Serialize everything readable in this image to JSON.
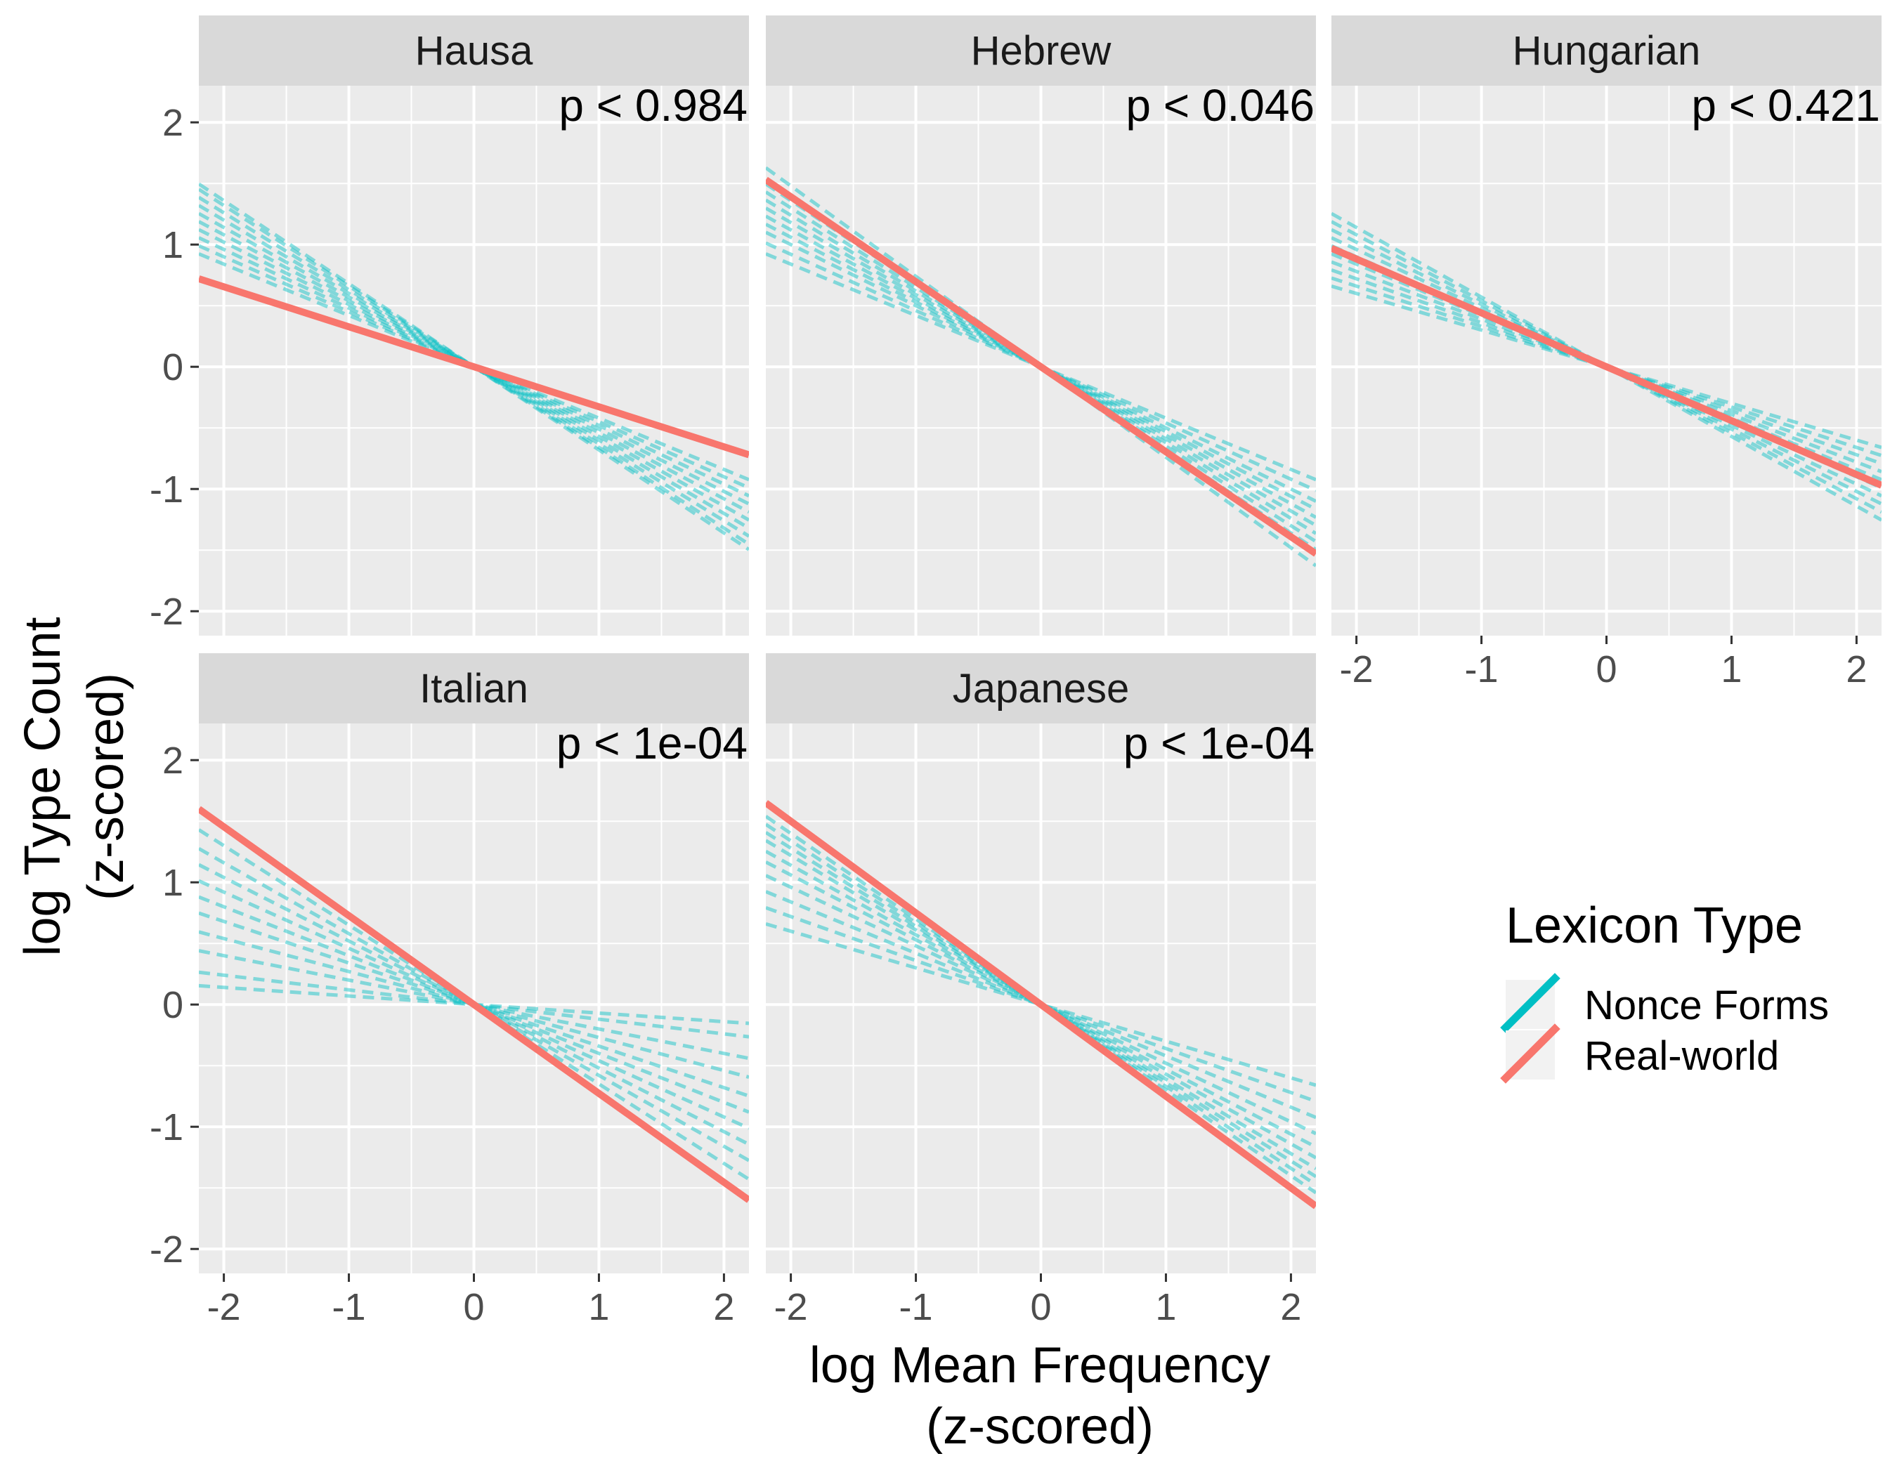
{
  "chart_data": {
    "type": "line",
    "layout": "faceted small multiples, 3 columns x 2 rows",
    "xlabel": [
      "log Mean Frequency",
      "(z-scored)"
    ],
    "ylabel": [
      "log Type Count",
      "(z-scored)"
    ],
    "xlim": [
      -2.2,
      2.2
    ],
    "ylim": [
      -2.2,
      2.3
    ],
    "x_ticks": [
      -2,
      -1,
      0,
      1,
      2
    ],
    "x_tick_labels": [
      "-2",
      "-1",
      "0",
      "1",
      "2"
    ],
    "y_ticks": [
      -2,
      -1,
      0,
      1,
      2
    ],
    "y_tick_labels": [
      "-2",
      "-1",
      "0",
      "1",
      "2"
    ],
    "grid": true,
    "legend": {
      "title": "Lexicon Type",
      "position": "right",
      "entries": [
        {
          "label": "Nonce Forms",
          "color": "#00BFC4",
          "style": "dashed"
        },
        {
          "label": "Real-world",
          "color": "#F8766D",
          "style": "solid"
        }
      ]
    },
    "colors": {
      "panel_background": "#EBEBEB",
      "strip_background": "#D9D9D9",
      "grid": "#FFFFFF",
      "nonce": "#00BFC4",
      "real": "#F8766D"
    },
    "facets": [
      {
        "name": "Hausa",
        "p_label": "p < 0.984",
        "real_world": {
          "x": [
            -2.2,
            2.2
          ],
          "y": [
            0.72,
            -0.72
          ]
        },
        "nonce_forms": {
          "x": [
            -2.2,
            2.2
          ],
          "slopes": [
            -0.42,
            -0.45,
            -0.48,
            -0.51,
            -0.54,
            -0.57,
            -0.6,
            -0.63,
            -0.66,
            -0.68
          ]
        }
      },
      {
        "name": "Hebrew",
        "p_label": "p < 0.046",
        "real_world": {
          "x": [
            -2.2,
            2.2
          ],
          "y": [
            1.53,
            -1.53
          ]
        },
        "nonce_forms": {
          "x": [
            -2.2,
            2.2
          ],
          "slopes": [
            -0.42,
            -0.46,
            -0.5,
            -0.53,
            -0.56,
            -0.59,
            -0.62,
            -0.65,
            -0.68,
            -0.74
          ]
        }
      },
      {
        "name": "Hungarian",
        "p_label": "p < 0.421",
        "real_world": {
          "x": [
            -2.2,
            2.2
          ],
          "y": [
            0.97,
            -0.97
          ]
        },
        "nonce_forms": {
          "x": [
            -2.2,
            2.2
          ],
          "slopes": [
            -0.3,
            -0.33,
            -0.36,
            -0.39,
            -0.42,
            -0.45,
            -0.48,
            -0.51,
            -0.54,
            -0.57
          ]
        }
      },
      {
        "name": "Italian",
        "p_label": "p < 1e-04",
        "real_world": {
          "x": [
            -2.2,
            2.2
          ],
          "y": [
            1.6,
            -1.6
          ]
        },
        "nonce_forms": {
          "x": [
            -2.2,
            2.2
          ],
          "slopes": [
            -0.07,
            -0.12,
            -0.2,
            -0.27,
            -0.34,
            -0.4,
            -0.46,
            -0.52,
            -0.58,
            -0.65
          ]
        }
      },
      {
        "name": "Japanese",
        "p_label": "p < 1e-04",
        "real_world": {
          "x": [
            -2.2,
            2.2
          ],
          "y": [
            1.65,
            -1.65
          ]
        },
        "nonce_forms": {
          "x": [
            -2.2,
            2.2
          ],
          "slopes": [
            -0.3,
            -0.36,
            -0.42,
            -0.48,
            -0.53,
            -0.57,
            -0.61,
            -0.64,
            -0.67,
            -0.7
          ]
        }
      }
    ]
  }
}
